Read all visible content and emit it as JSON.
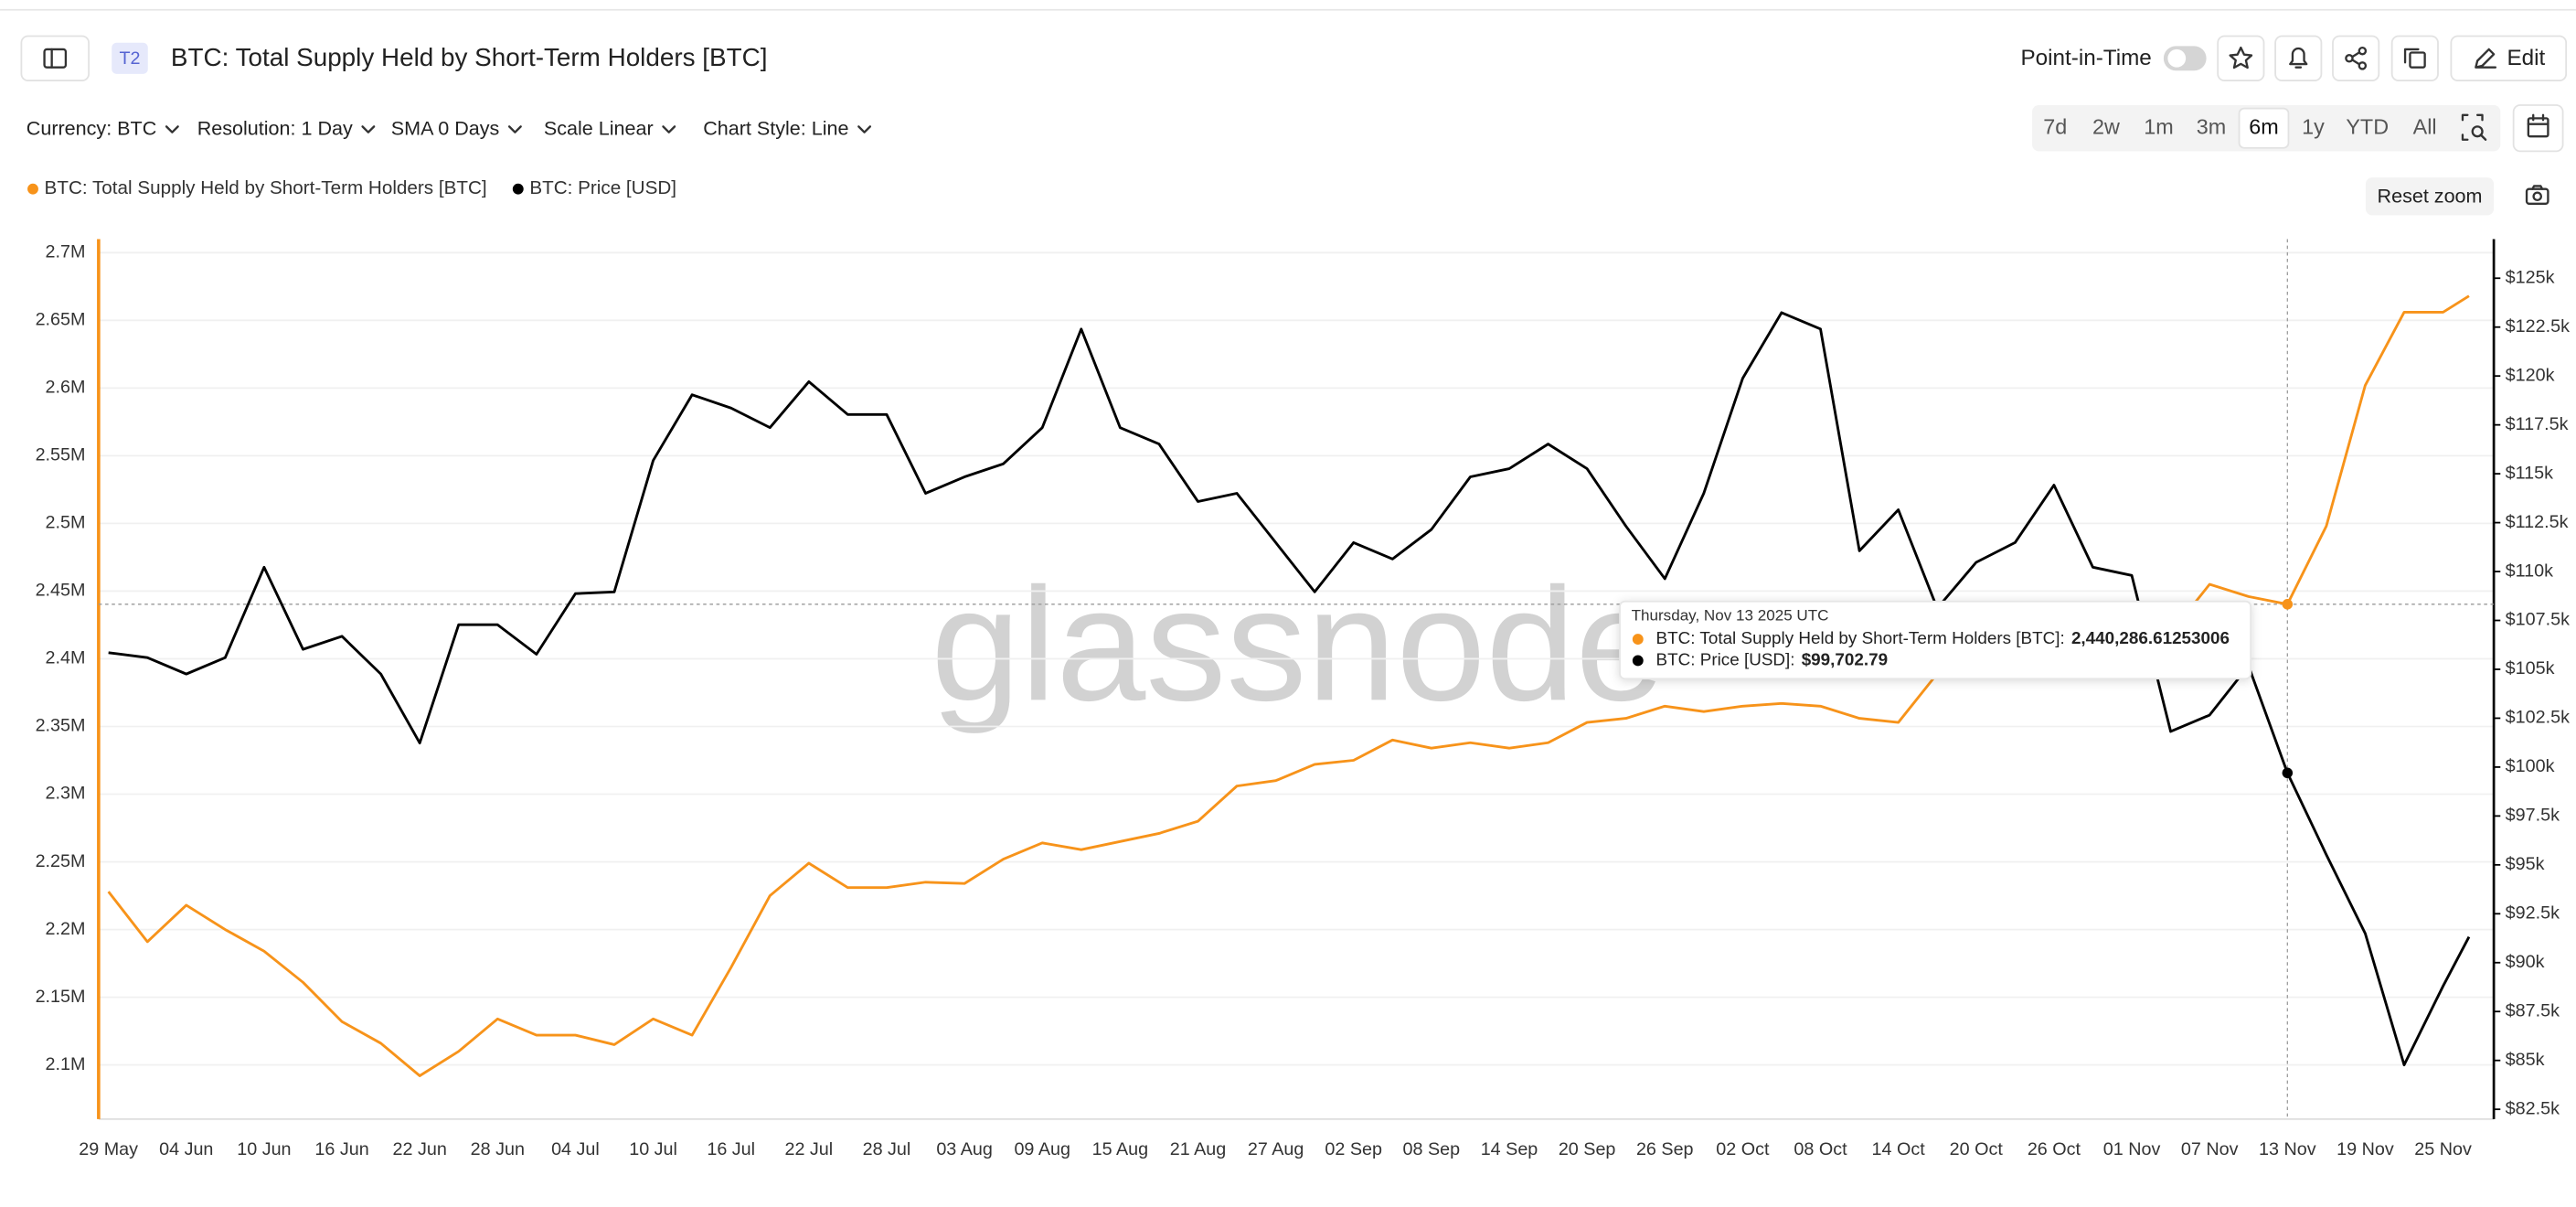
{
  "header": {
    "badge": "T2",
    "title": "BTC: Total Supply Held by Short-Term Holders [BTC]",
    "point_in_time": "Point-in-Time",
    "edit": "Edit"
  },
  "toolbar": {
    "filters": [
      "Currency: BTC",
      "Resolution: 1 Day",
      "SMA 0 Days",
      "Scale Linear",
      "Chart Style: Line"
    ],
    "ranges": [
      "7d",
      "2w",
      "1m",
      "3m",
      "6m",
      "1y",
      "YTD",
      "All"
    ],
    "active_range": "6m",
    "reset_zoom": "Reset zoom"
  },
  "watermark": "glassnode",
  "tooltip": {
    "date": "Thursday, Nov 13 2025 UTC",
    "rows": [
      {
        "label": "BTC: Total Supply Held by Short-Term Holders [BTC]:",
        "value": "2,440,286.61253006"
      },
      {
        "label": "BTC: Price [USD]:",
        "value": "$99,702.79"
      }
    ]
  },
  "chart_data": {
    "type": "line",
    "x": [
      "29 May",
      "01 Jun",
      "04 Jun",
      "07 Jun",
      "10 Jun",
      "13 Jun",
      "16 Jun",
      "19 Jun",
      "22 Jun",
      "25 Jun",
      "28 Jun",
      "01 Jul",
      "04 Jul",
      "07 Jul",
      "10 Jul",
      "13 Jul",
      "16 Jul",
      "19 Jul",
      "22 Jul",
      "25 Jul",
      "28 Jul",
      "31 Jul",
      "03 Aug",
      "06 Aug",
      "09 Aug",
      "12 Aug",
      "15 Aug",
      "18 Aug",
      "21 Aug",
      "24 Aug",
      "27 Aug",
      "30 Aug",
      "02 Sep",
      "05 Sep",
      "08 Sep",
      "11 Sep",
      "14 Sep",
      "17 Sep",
      "20 Sep",
      "23 Sep",
      "26 Sep",
      "29 Sep",
      "02 Oct",
      "05 Oct",
      "08 Oct",
      "11 Oct",
      "14 Oct",
      "17 Oct",
      "20 Oct",
      "23 Oct",
      "26 Oct",
      "29 Oct",
      "01 Nov",
      "04 Nov",
      "07 Nov",
      "10 Nov",
      "13 Nov",
      "16 Nov",
      "19 Nov",
      "22 Nov",
      "25 Nov",
      "27 Nov"
    ],
    "series": [
      {
        "name": "BTC: Total Supply Held by Short-Term Holders [BTC]",
        "color": "#f7931a",
        "values": [
          2228000,
          2191000,
          2218000,
          2200000,
          2184000,
          2161000,
          2132000,
          2116000,
          2092000,
          2110000,
          2134000,
          2122000,
          2122000,
          2115000,
          2134000,
          2122000,
          2172000,
          2225000,
          2249000,
          2231000,
          2231000,
          2235000,
          2234000,
          2252000,
          2264000,
          2259000,
          2265000,
          2271000,
          2280000,
          2306000,
          2310000,
          2322000,
          2325000,
          2340000,
          2334000,
          2338000,
          2334000,
          2338000,
          2353000,
          2356000,
          2365000,
          2361000,
          2365000,
          2367000,
          2365000,
          2356000,
          2353000,
          2389000,
          2387000,
          2389000,
          2395000,
          2401000,
          2407000,
          2419000,
          2455000,
          2446000,
          2440286.61,
          2498000,
          2602000,
          2656000,
          2656000,
          2668000
        ]
      },
      {
        "name": "BTC: Price [USD]",
        "color": "#000000",
        "axis": "y2",
        "values": [
          105850,
          105600,
          104760,
          105600,
          110220,
          106020,
          106690,
          104760,
          101230,
          107280,
          107280,
          105770,
          108870,
          108960,
          115680,
          119040,
          118360,
          117360,
          119710,
          118030,
          118030,
          114000,
          114840,
          115510,
          117360,
          122400,
          117360,
          116520,
          113580,
          114000,
          111480,
          108960,
          111480,
          110640,
          112150,
          114840,
          115260,
          116520,
          115260,
          112320,
          109630,
          114000,
          119880,
          123240,
          122400,
          111060,
          113160,
          108120,
          110470,
          111480,
          114420,
          110220,
          109800,
          101820,
          102660,
          105180,
          99702.79,
          95520,
          91490,
          84770,
          88800,
          91320
        ]
      }
    ],
    "xticks": [
      "29 May",
      "04 Jun",
      "10 Jun",
      "16 Jun",
      "22 Jun",
      "28 Jun",
      "04 Jul",
      "10 Jul",
      "16 Jul",
      "22 Jul",
      "28 Jul",
      "03 Aug",
      "09 Aug",
      "15 Aug",
      "21 Aug",
      "27 Aug",
      "02 Sep",
      "08 Sep",
      "14 Sep",
      "20 Sep",
      "26 Sep",
      "02 Oct",
      "08 Oct",
      "14 Oct",
      "20 Oct",
      "26 Oct",
      "01 Nov",
      "07 Nov",
      "13 Nov",
      "19 Nov",
      "25 Nov"
    ],
    "ylim": [
      2060000,
      2710000
    ],
    "yticks": [
      {
        "value": 2100000,
        "label": "2.1M"
      },
      {
        "value": 2150000,
        "label": "2.15M"
      },
      {
        "value": 2200000,
        "label": "2.2M"
      },
      {
        "value": 2250000,
        "label": "2.25M"
      },
      {
        "value": 2300000,
        "label": "2.3M"
      },
      {
        "value": 2350000,
        "label": "2.35M"
      },
      {
        "value": 2400000,
        "label": "2.4M"
      },
      {
        "value": 2450000,
        "label": "2.45M"
      },
      {
        "value": 2500000,
        "label": "2.5M"
      },
      {
        "value": 2550000,
        "label": "2.55M"
      },
      {
        "value": 2600000,
        "label": "2.6M"
      },
      {
        "value": 2650000,
        "label": "2.65M"
      },
      {
        "value": 2700000,
        "label": "2.7M"
      }
    ],
    "y2lim": [
      82000,
      127000
    ],
    "y2ticks": [
      {
        "value": 82500,
        "label": "$82.5k"
      },
      {
        "value": 85000,
        "label": "$85k"
      },
      {
        "value": 87500,
        "label": "$87.5k"
      },
      {
        "value": 90000,
        "label": "$90k"
      },
      {
        "value": 92500,
        "label": "$92.5k"
      },
      {
        "value": 95000,
        "label": "$95k"
      },
      {
        "value": 97500,
        "label": "$97.5k"
      },
      {
        "value": 100000,
        "label": "$100k"
      },
      {
        "value": 102500,
        "label": "$102.5k"
      },
      {
        "value": 105000,
        "label": "$105k"
      },
      {
        "value": 107500,
        "label": "$107.5k"
      },
      {
        "value": 110000,
        "label": "$110k"
      },
      {
        "value": 112500,
        "label": "$112.5k"
      },
      {
        "value": 115000,
        "label": "$115k"
      },
      {
        "value": 117500,
        "label": "$117.5k"
      },
      {
        "value": 120000,
        "label": "$120k"
      },
      {
        "value": 122500,
        "label": "$122.5k"
      },
      {
        "value": 125000,
        "label": "$125k"
      }
    ],
    "grid": true
  }
}
